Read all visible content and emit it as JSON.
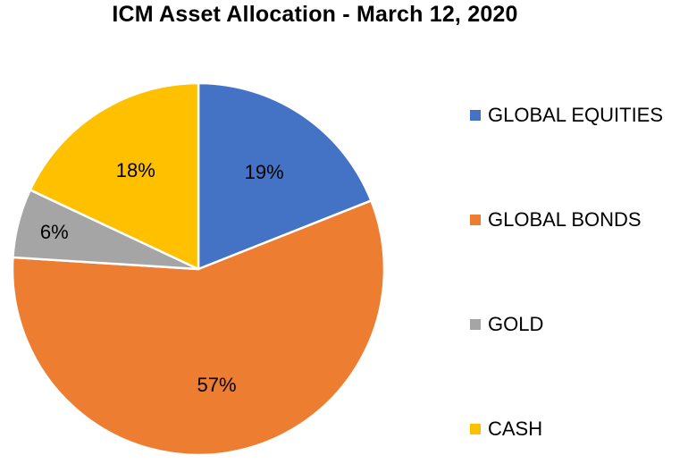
{
  "chart_data": {
    "type": "pie",
    "title": "ICM Asset Allocation - March 12, 2020",
    "slices": [
      {
        "name": "GLOBAL EQUITIES",
        "value": 19,
        "label": "19%",
        "color": "#4472C4"
      },
      {
        "name": "GLOBAL BONDS",
        "value": 57,
        "label": "57%",
        "color": "#ED7D31"
      },
      {
        "name": "GOLD",
        "value": 6,
        "label": "6%",
        "color": "#A5A5A5"
      },
      {
        "name": "CASH",
        "value": 18,
        "label": "18%",
        "color": "#FFC000"
      }
    ],
    "legend_position": "right"
  }
}
